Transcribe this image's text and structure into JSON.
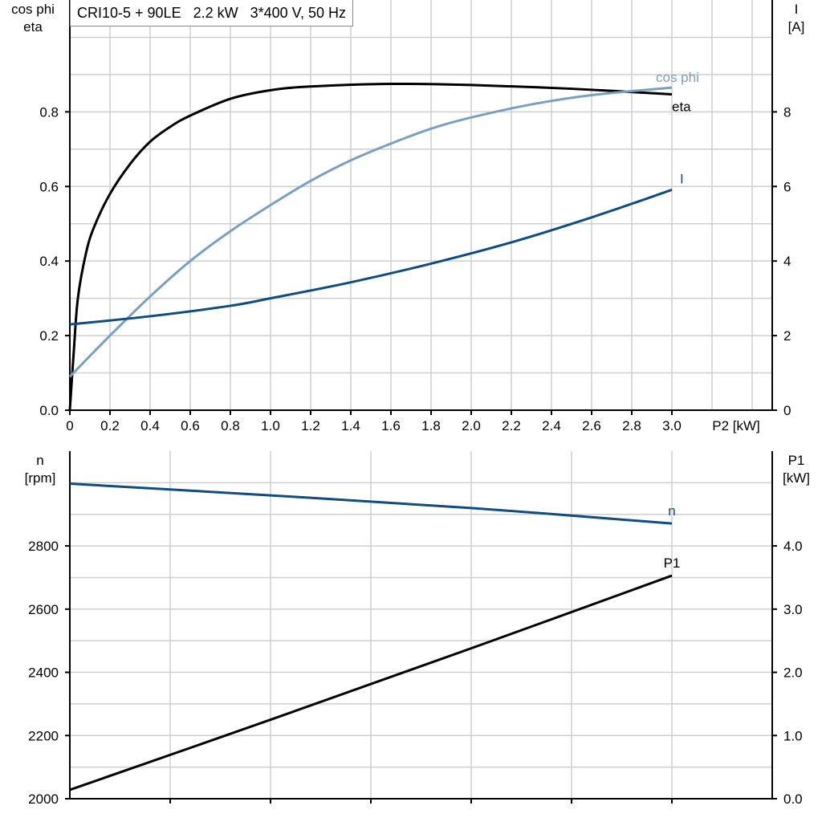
{
  "chart_data": [
    {
      "type": "line",
      "title": "CRI10-5 + 90LE   2.2 kW   3*400 V, 50 Hz",
      "xlabel": "P2 [kW]",
      "ylabel_left": [
        "cos phi",
        "eta"
      ],
      "ylabel_right": [
        "I",
        "[A]"
      ],
      "xlim": [
        0,
        3.5
      ],
      "ylim_left": [
        0,
        1.1
      ],
      "ylim_right": [
        0,
        11
      ],
      "x_ticks": [
        "0",
        "0.2",
        "0.4",
        "0.6",
        "0.8",
        "1.0",
        "1.2",
        "1.4",
        "1.6",
        "1.8",
        "2.0",
        "2.2",
        "2.4",
        "2.6",
        "2.8",
        "3.0"
      ],
      "y_left_ticks": [
        "0.0",
        "0.2",
        "0.4",
        "0.6",
        "0.8"
      ],
      "y_right_ticks": [
        "0",
        "2",
        "4",
        "6",
        "8"
      ],
      "grid": true,
      "series": [
        {
          "name": "eta",
          "axis": "left",
          "color": "#000000",
          "x": [
            0,
            0.02,
            0.04,
            0.08,
            0.12,
            0.2,
            0.3,
            0.4,
            0.5,
            0.6,
            0.8,
            1.0,
            1.2,
            1.6,
            2.0,
            2.5,
            3.0
          ],
          "y": [
            0,
            0.16,
            0.3,
            0.42,
            0.49,
            0.58,
            0.66,
            0.72,
            0.76,
            0.79,
            0.835,
            0.858,
            0.868,
            0.875,
            0.872,
            0.862,
            0.847
          ]
        },
        {
          "name": "cos phi",
          "axis": "left",
          "color": "#7b9fc1",
          "x": [
            0,
            0.2,
            0.4,
            0.6,
            0.8,
            1.0,
            1.2,
            1.4,
            1.6,
            1.8,
            2.0,
            2.3,
            2.6,
            3.0
          ],
          "y": [
            0.09,
            0.2,
            0.305,
            0.4,
            0.48,
            0.55,
            0.615,
            0.67,
            0.715,
            0.755,
            0.785,
            0.82,
            0.845,
            0.865
          ]
        },
        {
          "name": "I",
          "axis": "right",
          "color": "#0f4c81",
          "x": [
            0,
            0.4,
            0.8,
            1.0,
            1.4,
            1.8,
            2.2,
            2.6,
            3.0
          ],
          "y": [
            2.3,
            2.52,
            2.8,
            3.0,
            3.43,
            3.93,
            4.5,
            5.17,
            5.91
          ]
        }
      ]
    },
    {
      "type": "line",
      "ylabel_left": [
        "n",
        "[rpm]"
      ],
      "ylabel_right": [
        "P1",
        "[kW]"
      ],
      "xlim": [
        0,
        3.5
      ],
      "ylim_left": [
        2000,
        3100
      ],
      "ylim_right": [
        0,
        5.5
      ],
      "y_left_ticks": [
        "2000",
        "2200",
        "2400",
        "2600",
        "2800"
      ],
      "y_right_ticks": [
        "0.0",
        "1.0",
        "2.0",
        "3.0",
        "4.0"
      ],
      "grid": true,
      "series": [
        {
          "name": "n",
          "axis": "left",
          "color": "#0f4c81",
          "x": [
            0,
            1.0,
            2.0,
            3.0
          ],
          "y": [
            2997,
            2960,
            2920,
            2871
          ]
        },
        {
          "name": "P1",
          "axis": "right",
          "color": "#000000",
          "x": [
            0,
            1.0,
            2.0,
            3.0
          ],
          "y": [
            0.14,
            1.25,
            2.38,
            3.53
          ]
        }
      ]
    }
  ]
}
